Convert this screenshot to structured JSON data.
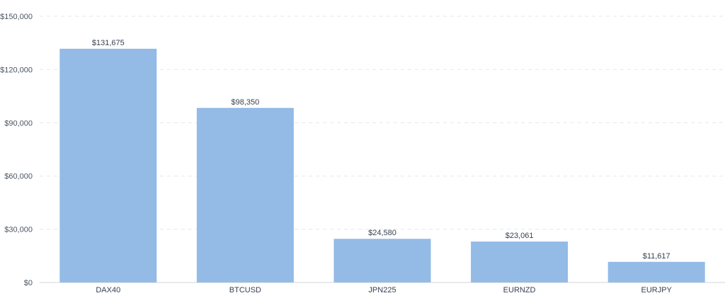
{
  "chart_data": {
    "type": "bar",
    "categories": [
      "DAX40",
      "BTCUSD",
      "JPN225",
      "EURNZD",
      "EURJPY"
    ],
    "values": [
      131675,
      98350,
      24580,
      23061,
      11617
    ],
    "value_labels": [
      "$131,675",
      "$98,350",
      "$24,580",
      "$23,061",
      "$11,617"
    ],
    "ylim": [
      0,
      150000
    ],
    "yticks": [
      0,
      30000,
      60000,
      90000,
      120000,
      150000
    ],
    "ytick_labels": [
      "$0",
      "$30,000",
      "$60,000",
      "$90,000",
      "$120,000",
      "$150,000"
    ],
    "bar_color": "#93bbe6",
    "grid": true,
    "legend": "none"
  }
}
